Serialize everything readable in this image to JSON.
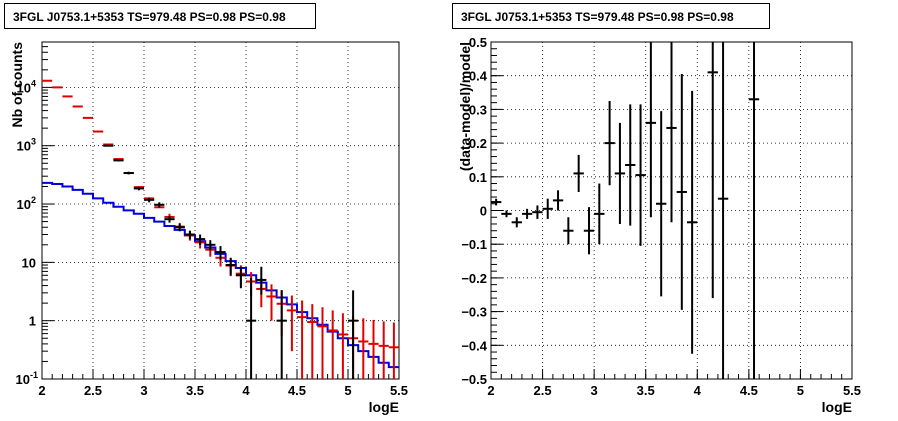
{
  "titles": {
    "left": "3FGL J0753.1+5353 TS=979.48 PS=0.98 PS=0.98",
    "right": "3FGL J0753.1+5353 TS=979.48 PS=0.98 PS=0.98"
  },
  "chart_data": [
    {
      "type": "histogram",
      "xlabel": "logE",
      "ylabel": "Nb of counts",
      "xlim": [
        2,
        5.5
      ],
      "ylim": [
        0.1,
        60000
      ],
      "yscale": "log",
      "grid": true,
      "x_ticks": [
        "2",
        "2.5",
        "3",
        "3.5",
        "4",
        "4.5",
        "5",
        "5.5"
      ],
      "y_ticks": [
        "10⁻¹",
        "1",
        "10",
        "10²",
        "10³",
        "10⁴"
      ],
      "x": [
        2.05,
        2.15,
        2.25,
        2.35,
        2.45,
        2.55,
        2.65,
        2.75,
        2.85,
        2.95,
        3.05,
        3.15,
        3.25,
        3.35,
        3.45,
        3.55,
        3.65,
        3.75,
        3.85,
        3.95,
        4.05,
        4.15,
        4.25,
        4.35,
        4.45,
        4.55,
        4.65,
        4.75,
        4.85,
        4.95,
        5.05,
        5.15,
        5.25,
        5.35,
        5.45
      ],
      "series": [
        {
          "color": "#000000",
          "values": [
            null,
            null,
            null,
            null,
            null,
            null,
            1000,
            560,
            340,
            185,
            118,
            97,
            55,
            40,
            30,
            25,
            20,
            15,
            9,
            6,
            1,
            5,
            null,
            1,
            null,
            null,
            null,
            null,
            null,
            null,
            1,
            null,
            null,
            null,
            null
          ],
          "err_lo": [
            null,
            null,
            null,
            null,
            null,
            null,
            30,
            23,
            18,
            13,
            11,
            10,
            7,
            6,
            5,
            5,
            4,
            4,
            3,
            2.4,
            0.9,
            2.2,
            null,
            0.9,
            null,
            null,
            null,
            null,
            null,
            null,
            0.9,
            null,
            null,
            null,
            null
          ],
          "err_hi": [
            null,
            null,
            null,
            null,
            null,
            null,
            30,
            23,
            18,
            13,
            11,
            10,
            7,
            6,
            5,
            5,
            4,
            4,
            3,
            2.4,
            4.4,
            3.4,
            null,
            2.3,
            null,
            null,
            null,
            null,
            null,
            null,
            2.3,
            null,
            null,
            null,
            null
          ]
        },
        {
          "color": "#e00000",
          "values": [
            13000,
            10000,
            7000,
            4700,
            3000,
            1750,
            1050,
            590,
            340,
            195,
            125,
            88,
            60,
            41,
            29,
            22,
            16.5,
            12,
            8.8,
            6.4,
            4.7,
            3.5,
            2.6,
            1.95,
            1.5,
            1.15,
            0.95,
            0.8,
            0.68,
            0.58,
            0.5,
            0.44,
            0.4,
            0.37,
            0.35
          ],
          "err_lo": [
            null,
            null,
            null,
            null,
            null,
            null,
            null,
            null,
            null,
            null,
            null,
            null,
            8,
            6.5,
            5.4,
            4.7,
            4,
            3.5,
            3,
            2.5,
            2.1,
            1.8,
            1.6,
            1.4,
            1.2,
            1.07,
            0.95,
            0.8,
            0.68,
            0.58,
            0.5,
            0.44,
            0.4,
            0.37,
            0.35
          ],
          "err_hi": [
            null,
            null,
            null,
            null,
            null,
            null,
            null,
            null,
            null,
            null,
            null,
            null,
            8,
            6.5,
            5.4,
            4.7,
            4,
            3.5,
            3,
            2.5,
            2.1,
            1.8,
            1.6,
            1.4,
            1.2,
            1.07,
            0.97,
            0.9,
            0.82,
            0.76,
            0.7,
            0.66,
            0.63,
            0.6,
            0.58
          ]
        },
        {
          "color": "#0000e0",
          "type": "step",
          "values": [
            230,
            220,
            200,
            175,
            150,
            125,
            105,
            90,
            78,
            68,
            58,
            50,
            42,
            36,
            29,
            23,
            18,
            14,
            10.5,
            8,
            6,
            4.5,
            3.3,
            2.5,
            1.9,
            1.4,
            1.1,
            0.85,
            0.65,
            0.5,
            0.38,
            0.3,
            0.24,
            0.19,
            0.16
          ]
        }
      ]
    },
    {
      "type": "errorbar",
      "xlabel": "logE",
      "ylabel": "(data-model)/model",
      "xlim": [
        2,
        5.5
      ],
      "ylim": [
        -0.5,
        0.5
      ],
      "grid": true,
      "x_ticks": [
        "2",
        "2.5",
        "3",
        "3.5",
        "4",
        "4.5",
        "5",
        "5.5"
      ],
      "y_ticks": [
        "−0.5",
        "−0.4",
        "−0.3",
        "−0.2",
        "−0.1",
        "0",
        "0.1",
        "0.2",
        "0.3",
        "0.4",
        "0.5"
      ],
      "points": [
        {
          "x": 2.05,
          "y": 0.025,
          "err": 0.01
        },
        {
          "x": 2.15,
          "y": -0.01,
          "err": 0.01
        },
        {
          "x": 2.25,
          "y": -0.035,
          "err": 0.015
        },
        {
          "x": 2.35,
          "y": -0.01,
          "err": 0.015
        },
        {
          "x": 2.45,
          "y": -0.005,
          "err": 0.02
        },
        {
          "x": 2.55,
          "y": 0.005,
          "err": 0.03
        },
        {
          "x": 2.65,
          "y": 0.03,
          "err": 0.03
        },
        {
          "x": 2.75,
          "y": -0.06,
          "err": 0.04
        },
        {
          "x": 2.85,
          "y": 0.11,
          "err": 0.055
        },
        {
          "x": 2.95,
          "y": -0.06,
          "err": 0.07
        },
        {
          "x": 3.05,
          "y": -0.01,
          "err": 0.09
        },
        {
          "x": 3.15,
          "y": 0.2,
          "err": 0.125
        },
        {
          "x": 3.25,
          "y": 0.11,
          "err": 0.15
        },
        {
          "x": 3.35,
          "y": 0.135,
          "err": 0.18
        },
        {
          "x": 3.45,
          "y": 0.105,
          "err": 0.21
        },
        {
          "x": 3.55,
          "y": 0.26,
          "err": 0.28
        },
        {
          "x": 3.65,
          "y": 0.02,
          "err": 0.275
        },
        {
          "x": 3.75,
          "y": 0.245,
          "err": 0.28
        },
        {
          "x": 3.85,
          "y": 0.055,
          "err": 0.35
        },
        {
          "x": 3.95,
          "y": -0.035,
          "err": 0.39
        },
        {
          "x": 4.15,
          "y": 0.41,
          "err": 0.67
        },
        {
          "x": 4.25,
          "y": 0.035,
          "err": 0.6
        },
        {
          "x": 4.55,
          "y": 0.33,
          "err": 0.9
        }
      ]
    }
  ]
}
